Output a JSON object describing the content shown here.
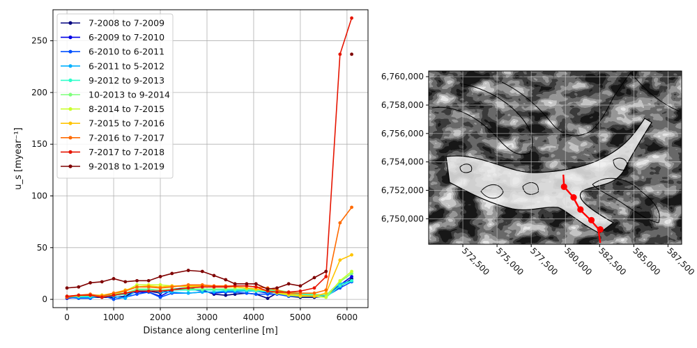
{
  "chart_data": [
    {
      "type": "line",
      "xlabel": "Distance along centerline [m]",
      "ylabel": "u_s [myear⁻¹]",
      "xlim": [
        -300,
        6450
      ],
      "ylim": [
        -8,
        280
      ],
      "xticks": [
        0,
        1000,
        2000,
        3000,
        4000,
        5000,
        6000
      ],
      "yticks": [
        0,
        50,
        100,
        150,
        200,
        250
      ],
      "grid": true,
      "legend": "top-left",
      "x": [
        0,
        250,
        500,
        750,
        1000,
        1250,
        1500,
        1750,
        2000,
        2250,
        2600,
        2900,
        3150,
        3400,
        3600,
        3850,
        4050,
        4300,
        4500,
        4750,
        5000,
        5300,
        5550,
        5850,
        6100
      ],
      "series": [
        {
          "name": "7-2008 to 7-2009",
          "color": "#00007f",
          "values": [
            2,
            2,
            2,
            2,
            2,
            3,
            8,
            8,
            6,
            10,
            11,
            9,
            5,
            4,
            5,
            6,
            5,
            1,
            6,
            3,
            2,
            2,
            3,
            12,
            20
          ]
        },
        {
          "name": "6-2009 to 7-2010",
          "color": "#0000e6",
          "values": [
            1,
            2,
            3,
            3,
            4,
            5,
            7,
            7,
            3,
            9,
            10,
            8,
            6,
            7,
            8,
            9,
            8,
            6,
            7,
            4,
            3,
            3,
            4,
            14,
            22
          ]
        },
        {
          "name": "6-2010 to 6-2011",
          "color": "#0050ff",
          "values": [
            2,
            1,
            1,
            4,
            0,
            2,
            5,
            7,
            2,
            6,
            6,
            7,
            7,
            7,
            7,
            6,
            5,
            5,
            5,
            3,
            3,
            3,
            3,
            11,
            17
          ]
        },
        {
          "name": "6-2011 to 5-2012",
          "color": "#00b0ff",
          "values": [
            3,
            2,
            2,
            3,
            3,
            1,
            9,
            9,
            7,
            7,
            6,
            7,
            7,
            8,
            8,
            8,
            8,
            7,
            7,
            5,
            4,
            4,
            4,
            15,
            18
          ]
        },
        {
          "name": "9-2012 to 9-2013",
          "color": "#2cffca",
          "values": [
            2,
            3,
            3,
            3,
            4,
            5,
            9,
            9,
            8,
            9,
            9,
            9,
            9,
            9,
            9,
            9,
            8,
            8,
            8,
            6,
            5,
            4,
            2,
            13,
            18
          ]
        },
        {
          "name": "10-2013 to 9-2014",
          "color": "#7dff7a",
          "values": [
            3,
            3,
            4,
            4,
            5,
            6,
            10,
            10,
            9,
            10,
            10,
            10,
            10,
            10,
            10,
            10,
            9,
            9,
            9,
            7,
            6,
            5,
            4,
            17,
            25
          ]
        },
        {
          "name": "8-2014 to 7-2015",
          "color": "#caff2c",
          "values": [
            2,
            4,
            4,
            4,
            5,
            8,
            14,
            14,
            14,
            13,
            12,
            13,
            12,
            12,
            12,
            11,
            10,
            8,
            6,
            4,
            3,
            3,
            2,
            18,
            27
          ]
        },
        {
          "name": "7-2015 to 7-2016",
          "color": "#ffc400",
          "values": [
            3,
            4,
            4,
            4,
            6,
            9,
            12,
            13,
            12,
            13,
            13,
            13,
            12,
            12,
            12,
            11,
            10,
            8,
            7,
            5,
            4,
            3,
            6,
            38,
            43
          ]
        },
        {
          "name": "7-2016 to 7-2017",
          "color": "#ff6a00",
          "values": [
            2,
            4,
            5,
            3,
            6,
            8,
            12,
            12,
            11,
            12,
            14,
            14,
            13,
            13,
            13,
            13,
            12,
            11,
            9,
            6,
            6,
            6,
            9,
            74,
            89
          ]
        },
        {
          "name": "7-2017 to 7-2018",
          "color": "#e61400",
          "values": [
            3,
            4,
            4,
            2,
            4,
            6,
            8,
            8,
            8,
            9,
            11,
            12,
            12,
            12,
            13,
            13,
            12,
            8,
            7,
            7,
            8,
            11,
            22,
            237,
            272
          ]
        },
        {
          "name": "9-2018 to 1-2019",
          "color": "#7f0000",
          "values": [
            11,
            12,
            16,
            17,
            20,
            17,
            18,
            18,
            22,
            25,
            28,
            27,
            23,
            19,
            15,
            15,
            15,
            10,
            11,
            15,
            13,
            21,
            27,
            null,
            237
          ]
        }
      ]
    },
    {
      "type": "map",
      "xlim": [
        570000,
        588500
      ],
      "ylim": [
        6748200,
        6760400
      ],
      "xticks": [
        572500,
        575000,
        577500,
        580000,
        582500,
        585000,
        587500
      ],
      "xtick_labels": [
        "572,500",
        "575,000",
        "577,500",
        "580,000",
        "582,500",
        "585,000",
        "587,500"
      ],
      "yticks": [
        6750000,
        6752000,
        6754000,
        6756000,
        6758000,
        6760000
      ],
      "ytick_labels": [
        "6,750,000",
        "6,752,000",
        "6,754,000",
        "6,756,000",
        "6,758,000",
        "6,760,000"
      ],
      "grid": true,
      "centerline_color": "#ff0000",
      "centerline": [
        [
          579850,
          6753100
        ],
        [
          579900,
          6752250
        ],
        [
          580550,
          6751550
        ],
        [
          581050,
          6750650
        ],
        [
          581850,
          6749900
        ],
        [
          582400,
          6749300
        ],
        [
          582550,
          6748300
        ]
      ],
      "centerline_points": [
        [
          579900,
          6752250
        ],
        [
          580600,
          6751500
        ],
        [
          581100,
          6750650
        ],
        [
          581900,
          6749900
        ],
        [
          582550,
          6749250
        ]
      ]
    }
  ]
}
